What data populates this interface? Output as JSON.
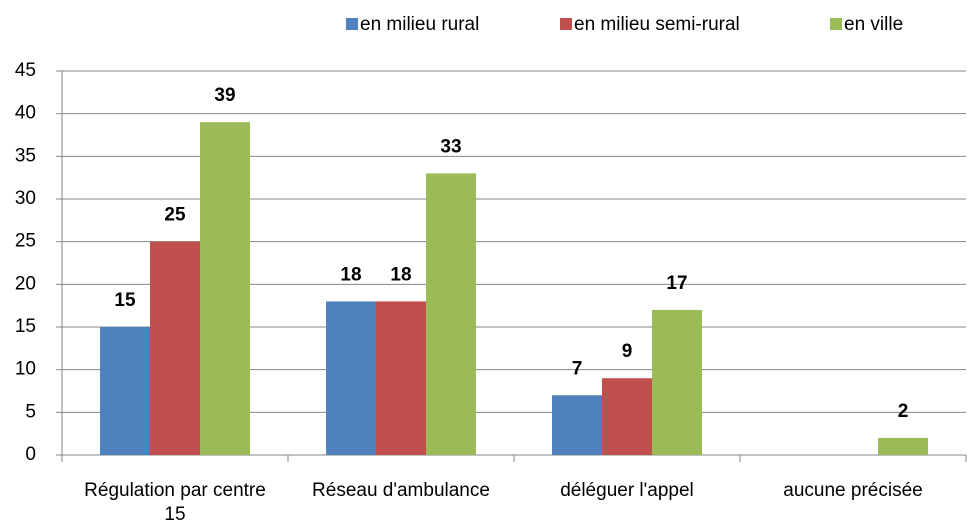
{
  "chart_data": {
    "type": "bar",
    "categories": [
      "Régulation par centre 15",
      "Réseau d'ambulance",
      "déléguer l'appel",
      "aucune précisée"
    ],
    "series": [
      {
        "name": "en milieu rural",
        "color": "#4f81bd",
        "values": [
          15,
          18,
          7,
          null
        ]
      },
      {
        "name": "en milieu semi-rural",
        "color": "#c0504d",
        "values": [
          25,
          18,
          9,
          null
        ]
      },
      {
        "name": "en ville",
        "color": "#9bbb59",
        "values": [
          39,
          33,
          17,
          2
        ]
      }
    ],
    "ylim": [
      0,
      45
    ],
    "yticks": [
      0,
      5,
      10,
      15,
      20,
      25,
      30,
      35,
      40,
      45
    ],
    "grid": true,
    "legend": "top"
  }
}
